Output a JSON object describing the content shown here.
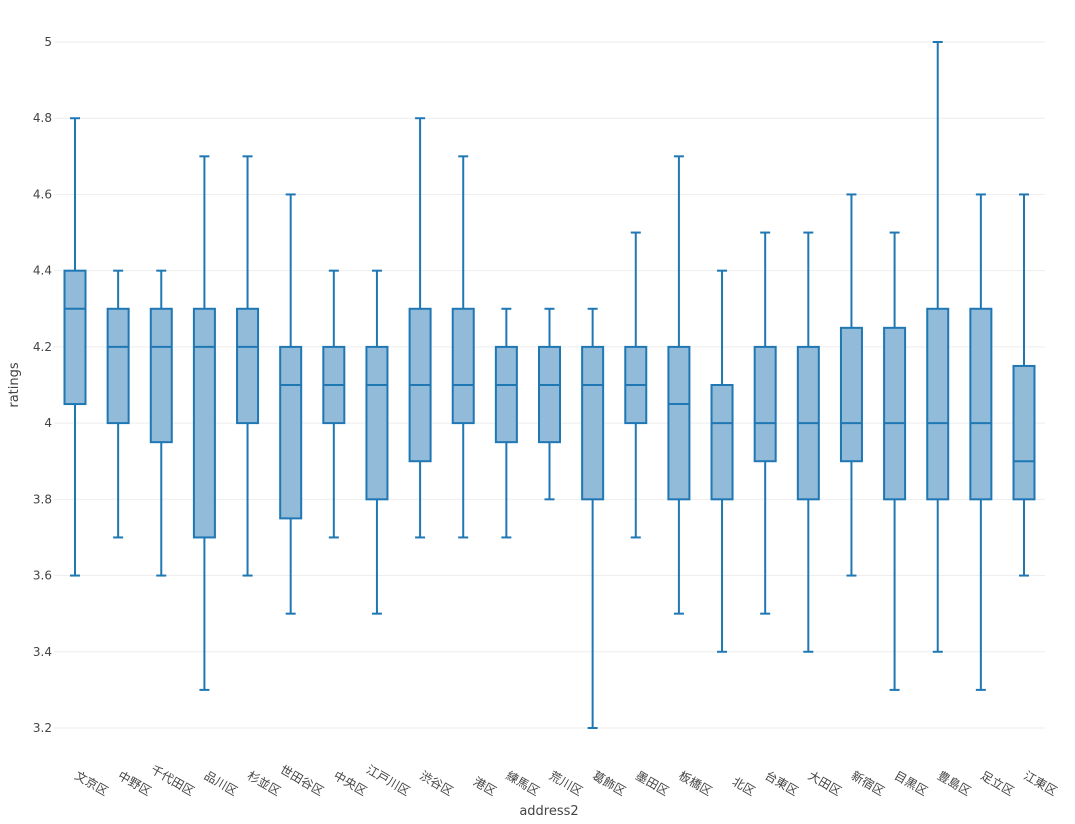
{
  "chart_data": {
    "type": "box",
    "title": "",
    "xlabel": "address2",
    "ylabel": "ratings",
    "ylim": [
      3.15,
      5.05
    ],
    "yticks": [
      3.2,
      3.4,
      3.6,
      3.8,
      4,
      4.2,
      4.4,
      4.6,
      4.8,
      5
    ],
    "grid": true,
    "legend": "none",
    "colors": {
      "fill": "#92bad9",
      "stroke": "#1f77b4",
      "grid": "#eeeeee",
      "text": "#444444"
    },
    "categories": [
      "文京区",
      "中野区",
      "千代田区",
      "品川区",
      "杉並区",
      "世田谷区",
      "中央区",
      "江戸川区",
      "渋谷区",
      "港区",
      "練馬区",
      "荒川区",
      "葛飾区",
      "墨田区",
      "板橋区",
      "北区",
      "台東区",
      "大田区",
      "新宿区",
      "目黒区",
      "豊島区",
      "足立区",
      "江東区"
    ],
    "boxes": [
      {
        "category": "文京区",
        "min": 3.6,
        "q1": 4.05,
        "median": 4.3,
        "q3": 4.4,
        "max": 4.8
      },
      {
        "category": "中野区",
        "min": 3.7,
        "q1": 4.0,
        "median": 4.2,
        "q3": 4.3,
        "max": 4.4
      },
      {
        "category": "千代田区",
        "min": 3.6,
        "q1": 3.95,
        "median": 4.2,
        "q3": 4.3,
        "max": 4.4
      },
      {
        "category": "品川区",
        "min": 3.3,
        "q1": 3.7,
        "median": 4.2,
        "q3": 4.3,
        "max": 4.7
      },
      {
        "category": "杉並区",
        "min": 3.6,
        "q1": 4.0,
        "median": 4.2,
        "q3": 4.3,
        "max": 4.7
      },
      {
        "category": "世田谷区",
        "min": 3.5,
        "q1": 3.75,
        "median": 4.1,
        "q3": 4.2,
        "max": 4.6
      },
      {
        "category": "中央区",
        "min": 3.7,
        "q1": 4.0,
        "median": 4.1,
        "q3": 4.2,
        "max": 4.4
      },
      {
        "category": "江戸川区",
        "min": 3.5,
        "q1": 3.8,
        "median": 4.1,
        "q3": 4.2,
        "max": 4.4
      },
      {
        "category": "渋谷区",
        "min": 3.7,
        "q1": 3.9,
        "median": 4.1,
        "q3": 4.3,
        "max": 4.8
      },
      {
        "category": "港区",
        "min": 3.7,
        "q1": 4.0,
        "median": 4.1,
        "q3": 4.3,
        "max": 4.7
      },
      {
        "category": "練馬区",
        "min": 3.7,
        "q1": 3.95,
        "median": 4.1,
        "q3": 4.2,
        "max": 4.3
      },
      {
        "category": "荒川区",
        "min": 3.8,
        "q1": 3.95,
        "median": 4.1,
        "q3": 4.2,
        "max": 4.3
      },
      {
        "category": "葛飾区",
        "min": 3.2,
        "q1": 3.8,
        "median": 4.1,
        "q3": 4.2,
        "max": 4.3
      },
      {
        "category": "墨田区",
        "min": 3.7,
        "q1": 4.0,
        "median": 4.1,
        "q3": 4.2,
        "max": 4.5
      },
      {
        "category": "板橋区",
        "min": 3.5,
        "q1": 3.8,
        "median": 4.05,
        "q3": 4.2,
        "max": 4.7
      },
      {
        "category": "北区",
        "min": 3.4,
        "q1": 3.8,
        "median": 4.0,
        "q3": 4.1,
        "max": 4.4
      },
      {
        "category": "台東区",
        "min": 3.5,
        "q1": 3.9,
        "median": 4.0,
        "q3": 4.2,
        "max": 4.5
      },
      {
        "category": "大田区",
        "min": 3.4,
        "q1": 3.8,
        "median": 4.0,
        "q3": 4.2,
        "max": 4.5
      },
      {
        "category": "新宿区",
        "min": 3.6,
        "q1": 3.9,
        "median": 4.0,
        "q3": 4.25,
        "max": 4.6
      },
      {
        "category": "目黒区",
        "min": 3.3,
        "q1": 3.8,
        "median": 4.0,
        "q3": 4.25,
        "max": 4.5
      },
      {
        "category": "豊島区",
        "min": 3.4,
        "q1": 3.8,
        "median": 4.0,
        "q3": 4.3,
        "max": 5.0
      },
      {
        "category": "足立区",
        "min": 3.3,
        "q1": 3.8,
        "median": 4.0,
        "q3": 4.3,
        "max": 4.6
      },
      {
        "category": "江東区",
        "min": 3.6,
        "q1": 3.8,
        "median": 3.9,
        "q3": 4.15,
        "max": 4.6
      }
    ]
  }
}
